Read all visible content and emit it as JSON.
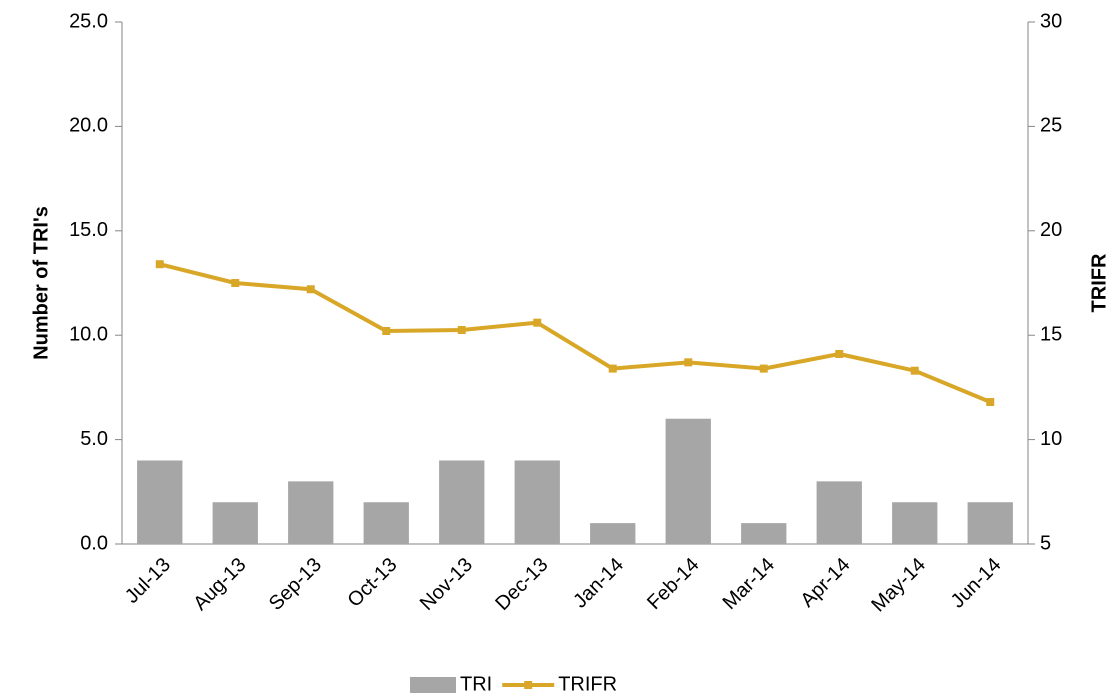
{
  "chart_data": {
    "type": "bar_line",
    "categories": [
      "Jul-13",
      "Aug-13",
      "Sep-13",
      "Oct-13",
      "Nov-13",
      "Dec-13",
      "Jan-14",
      "Feb-14",
      "Mar-14",
      "Apr-14",
      "May-14",
      "Jun-14"
    ],
    "series": [
      {
        "name": "TRI",
        "type": "bar",
        "color": "#a6a6a6",
        "values": [
          4,
          2,
          3,
          2,
          4,
          4,
          1,
          6,
          1,
          3,
          2,
          2
        ]
      },
      {
        "name": "TRIFR",
        "type": "line",
        "axis": "y2",
        "color": "#d9a728",
        "values": [
          18.4,
          17.5,
          17.2,
          15.2,
          15.25,
          15.6,
          13.4,
          13.7,
          13.4,
          14.1,
          13.3,
          11.8
        ]
      }
    ],
    "ylabel": "Number of TRI's",
    "y2label": "TRIFR",
    "ylim": [
      0,
      25
    ],
    "yticks": [
      {
        "value": 0,
        "label": "0.0"
      },
      {
        "value": 5,
        "label": "5.0"
      },
      {
        "value": 10,
        "label": "10.0"
      },
      {
        "value": 15,
        "label": "15.0"
      },
      {
        "value": 20,
        "label": "20.0"
      },
      {
        "value": 25,
        "label": "25.0"
      }
    ],
    "y2lim": [
      5,
      30
    ],
    "y2ticks": [
      5,
      10,
      15,
      20,
      25,
      30
    ],
    "legend": "bottom"
  }
}
